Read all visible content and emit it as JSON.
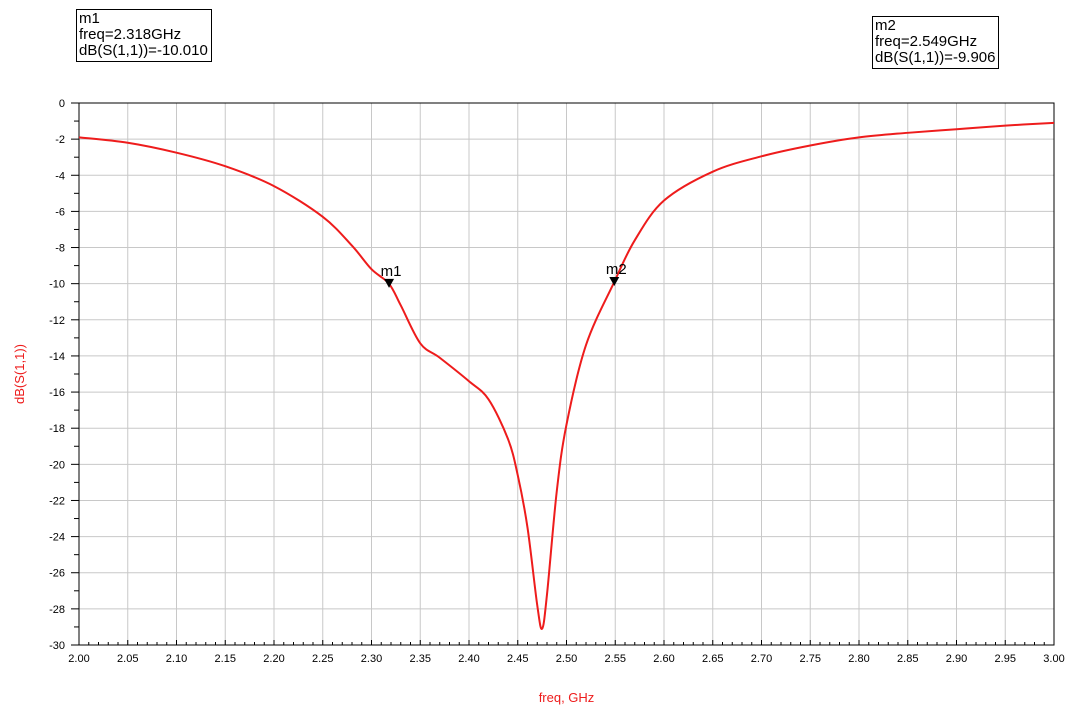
{
  "markers": [
    {
      "name": "m1",
      "freq_text": "freq=2.318GHz",
      "value_text": "dB(S(1,1))=-10.010",
      "x": 2.318,
      "y": -10.01
    },
    {
      "name": "m2",
      "freq_text": "freq=2.549GHz",
      "value_text": "dB(S(1,1))=-9.906",
      "x": 2.549,
      "y": -9.906
    }
  ],
  "colors": {
    "trace": "#ee1c1c",
    "grid": "#c8c8c8",
    "axis": "#000000"
  },
  "chart_data": {
    "type": "line",
    "title": "",
    "xlabel": "freq, GHz",
    "ylabel": "dB(S(1,1))",
    "xlim": [
      2.0,
      3.0
    ],
    "ylim": [
      -30,
      0
    ],
    "grid": true,
    "x_ticks": [
      "2.00",
      "2.05",
      "2.10",
      "2.15",
      "2.20",
      "2.25",
      "2.30",
      "2.35",
      "2.40",
      "2.45",
      "2.50",
      "2.55",
      "2.60",
      "2.65",
      "2.70",
      "2.75",
      "2.80",
      "2.85",
      "2.90",
      "2.95",
      "3.00"
    ],
    "y_ticks": [
      "0",
      "-2",
      "-4",
      "-6",
      "-8",
      "-10",
      "-12",
      "-14",
      "-16",
      "-18",
      "-20",
      "-22",
      "-24",
      "-26",
      "-28",
      "-30"
    ],
    "series": [
      {
        "x": [
          2.0,
          2.05,
          2.1,
          2.15,
          2.2,
          2.25,
          2.28,
          2.3,
          2.318,
          2.33,
          2.35,
          2.37,
          2.4,
          2.42,
          2.44,
          2.45,
          2.46,
          2.47,
          2.475,
          2.48,
          2.49,
          2.5,
          2.52,
          2.549,
          2.57,
          2.6,
          2.65,
          2.7,
          2.75,
          2.8,
          2.85,
          2.9,
          2.95,
          3.0
        ],
        "y": [
          -1.9,
          -2.2,
          -2.75,
          -3.5,
          -4.6,
          -6.3,
          -7.9,
          -9.2,
          -10.01,
          -11.2,
          -13.3,
          -14.1,
          -15.4,
          -16.4,
          -18.6,
          -20.6,
          -23.5,
          -27.8,
          -29.1,
          -27.2,
          -21.5,
          -17.8,
          -13.4,
          -9.906,
          -7.6,
          -5.4,
          -3.8,
          -2.95,
          -2.35,
          -1.9,
          -1.65,
          -1.45,
          -1.25,
          -1.1
        ]
      }
    ]
  }
}
